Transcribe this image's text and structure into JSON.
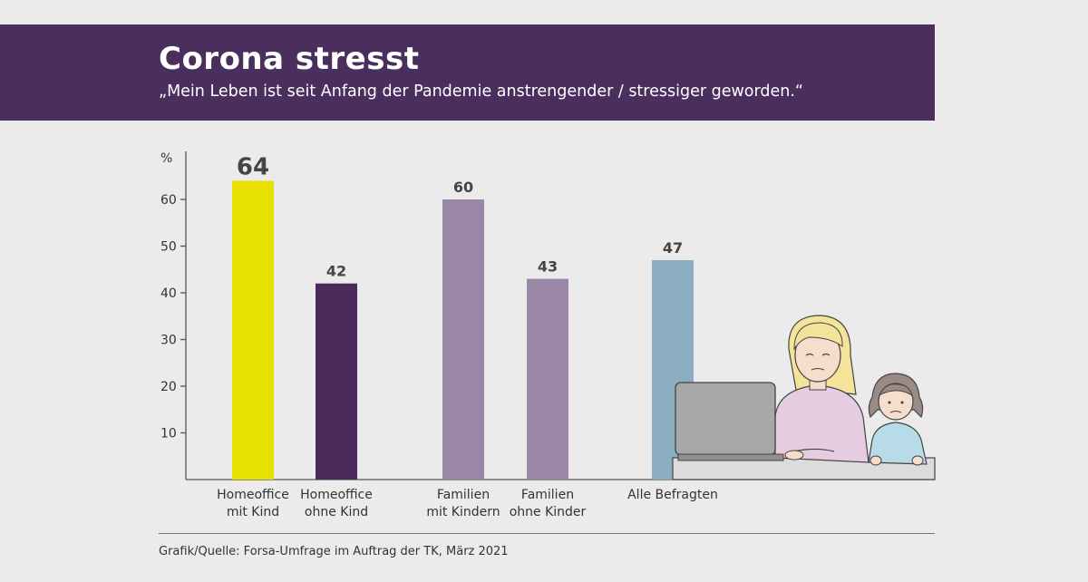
{
  "header": {
    "title": "Corona stresst",
    "subtitle": "„Mein Leben ist seit Anfang der Pandemie anstrengender / stressiger geworden.“"
  },
  "chart_data": {
    "type": "bar",
    "title": "Corona stresst",
    "subtitle": "„Mein Leben ist seit Anfang der Pandemie anstrengender / stressiger geworden.“",
    "ylabel": "%",
    "xlabel": "",
    "ylim": [
      0,
      70
    ],
    "yticks": [
      10,
      20,
      30,
      40,
      50,
      60
    ],
    "grid": false,
    "categories": [
      {
        "line1": "Homeoffice",
        "line2": "mit Kind"
      },
      {
        "line1": "Homeoffice",
        "line2": "ohne Kind"
      },
      {
        "line1": "Familien",
        "line2": "mit Kindern"
      },
      {
        "line1": "Familien",
        "line2": "ohne Kinder"
      },
      {
        "line1": "Alle Befragten",
        "line2": ""
      }
    ],
    "values": [
      64,
      42,
      60,
      43,
      47
    ],
    "colors": [
      "#e8e000",
      "#4a2a5a",
      "#9a86a5",
      "#9a86a5",
      "#8aaec0"
    ],
    "highlight_index": 0
  },
  "illustration": {
    "description_icon": "woman-with-laptop-and-child-illustration",
    "colors": {
      "laptop": "#a8a8a8",
      "shirt_woman": "#e6cce0",
      "shirt_child": "#b7dbe8",
      "hair_woman": "#f3e49a",
      "hair_child": "#9a8a86",
      "skin": "#f6ddcc",
      "desk": "#dcdcdc"
    }
  },
  "footer": {
    "source": "Grafik/Quelle: Forsa-Umfrage im Auftrag der TK, März 2021"
  }
}
